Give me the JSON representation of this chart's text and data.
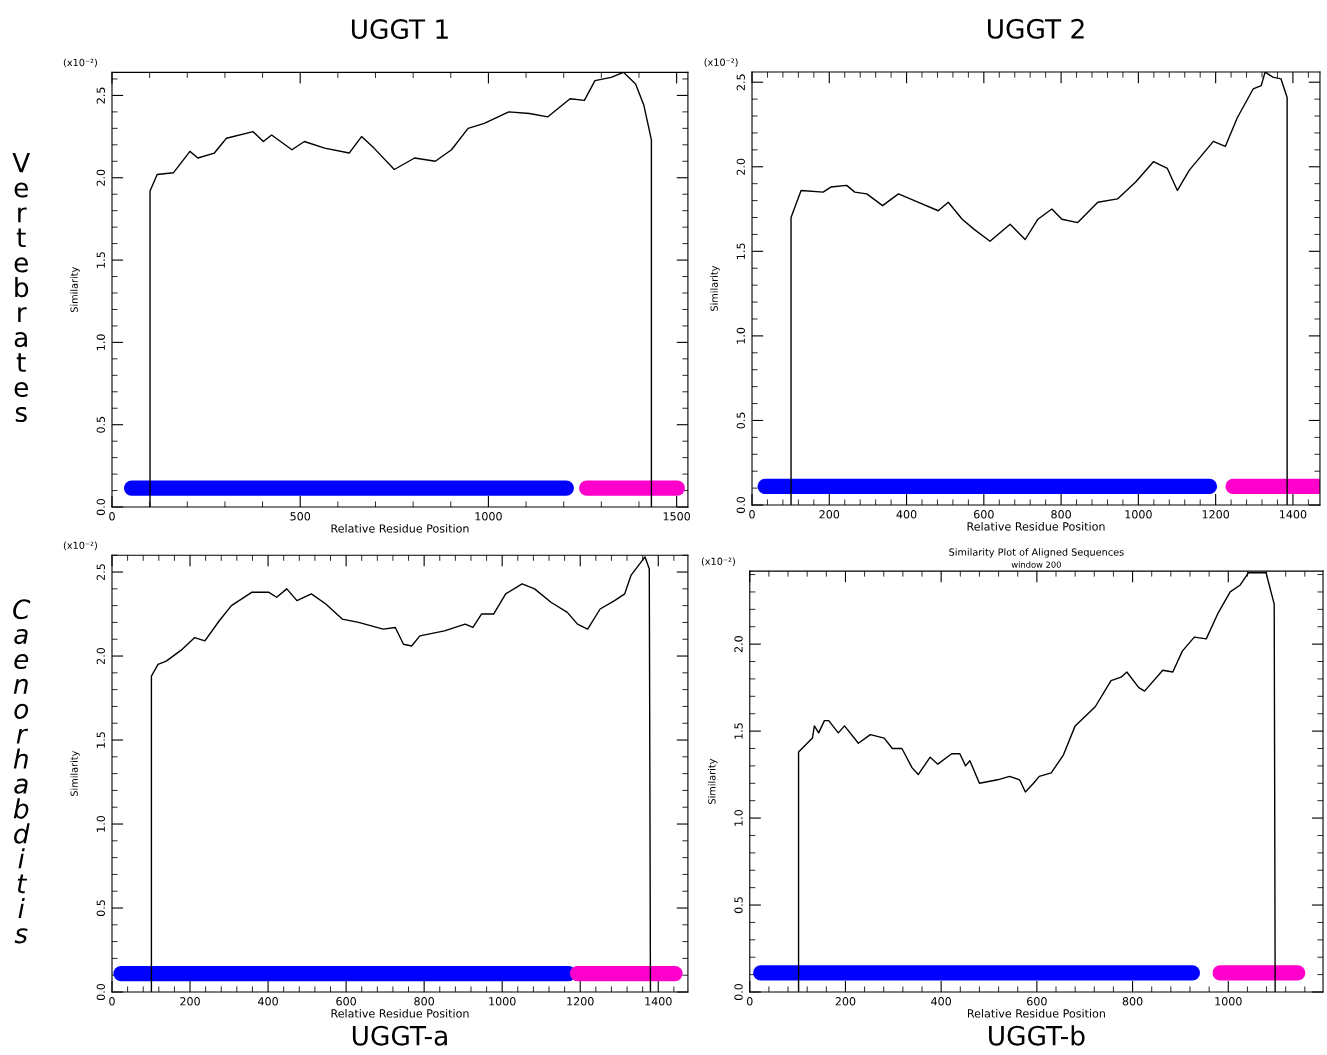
{
  "chart_data": [
    {
      "type": "line",
      "title": "UGGT 1",
      "xlabel": "Relative Residue Position",
      "ylabel": "Similarity",
      "annotations": [
        "(x10⁻²)",
        "Vertebrates"
      ],
      "xlim": [
        0,
        1530
      ],
      "ylim": [
        0,
        2.64
      ],
      "xticks": [
        0,
        500,
        1000,
        1500
      ],
      "yticks": [
        {
          "value": 0,
          "label": "0.0"
        },
        0.5,
        {
          "value": 1,
          "label": "1.0"
        },
        1.5,
        {
          "value": 2,
          "label": "2.0"
        },
        2.5
      ],
      "grid": false,
      "legend": false,
      "marker": "none",
      "line_style": "solid",
      "series": [
        {
          "color": "#000000",
          "x": [
            101,
            101,
            120,
            163,
            207,
            228,
            272,
            304,
            375,
            402,
            424,
            478,
            511,
            565,
            630,
            663,
            696,
            750,
            804,
            859,
            902,
            946,
            989,
            1054,
            1109,
            1158,
            1217,
            1255,
            1283,
            1326,
            1359,
            1391,
            1413,
            1433,
            1433
          ],
          "values": [
            0,
            1.92,
            2.02,
            2.03,
            2.16,
            2.12,
            2.15,
            2.24,
            2.28,
            2.22,
            2.26,
            2.17,
            2.22,
            2.18,
            2.15,
            2.25,
            2.18,
            2.05,
            2.12,
            2.1,
            2.17,
            2.3,
            2.33,
            2.4,
            2.39,
            2.37,
            2.48,
            2.47,
            2.59,
            2.61,
            2.64,
            2.57,
            2.44,
            2.23,
            0
          ]
        },
        {
          "color": "#0000ff",
          "x": [
            52,
            1207
          ],
          "values": [
            0.115,
            0.115
          ]
        },
        {
          "color": "#ff00cc",
          "x": [
            1261,
            1502
          ],
          "values": [
            0.115,
            0.115
          ]
        }
      ]
    },
    {
      "type": "line",
      "title": "UGGT 2",
      "xlabel": "Relative Residue Position",
      "ylabel": "Similarity",
      "annotations": [
        "(x10⁻²)"
      ],
      "xlim": [
        0,
        1470
      ],
      "ylim": [
        0,
        2.56
      ],
      "xticks": [
        0,
        200,
        400,
        600,
        800,
        1000,
        1200,
        1400
      ],
      "yticks": [
        {
          "value": 0,
          "label": "0.0"
        },
        0.5,
        {
          "value": 1,
          "label": "1.0"
        },
        1.5,
        {
          "value": 2,
          "label": "2.0"
        },
        2.5
      ],
      "grid": false,
      "legend": false,
      "marker": "none",
      "line_style": "solid",
      "series": [
        {
          "color": "#000000",
          "x": [
            101,
            101,
            127,
            184,
            204,
            245,
            266,
            297,
            338,
            379,
            431,
            482,
            508,
            544,
            575,
            616,
            668,
            707,
            740,
            776,
            802,
            843,
            895,
            946,
            993,
            1039,
            1075,
            1101,
            1132,
            1194,
            1225,
            1256,
            1297,
            1318,
            1328,
            1348,
            1369,
            1385,
            1385
          ],
          "values": [
            0,
            1.7,
            1.86,
            1.85,
            1.88,
            1.89,
            1.85,
            1.84,
            1.77,
            1.84,
            1.79,
            1.74,
            1.79,
            1.69,
            1.63,
            1.56,
            1.66,
            1.57,
            1.69,
            1.75,
            1.69,
            1.67,
            1.79,
            1.81,
            1.91,
            2.03,
            1.99,
            1.86,
            1.98,
            2.15,
            2.12,
            2.29,
            2.46,
            2.48,
            2.56,
            2.53,
            2.52,
            2.41,
            0
          ]
        },
        {
          "color": "#0000ff",
          "x": [
            34,
            1184
          ],
          "values": [
            0.11,
            0.11
          ]
        },
        {
          "color": "#ff00cc",
          "x": [
            1245,
            1467
          ],
          "values": [
            0.11,
            0.11
          ]
        }
      ]
    },
    {
      "type": "line",
      "title": "UGGT-a",
      "xlabel": "Relative Residue Position",
      "ylabel": "Similarity",
      "annotations": [
        "(x10⁻²)",
        "Caenorhabditis"
      ],
      "xlim": [
        0,
        1476
      ],
      "ylim": [
        0,
        2.6
      ],
      "xticks": [
        0,
        200,
        400,
        600,
        800,
        1000,
        1200,
        1400
      ],
      "yticks": [
        {
          "value": 0,
          "label": "0.0"
        },
        0.5,
        {
          "value": 1,
          "label": "1.0"
        },
        1.5,
        {
          "value": 2,
          "label": "2.0"
        },
        2.5
      ],
      "grid": false,
      "legend": false,
      "marker": "none",
      "line_style": "solid",
      "series": [
        {
          "color": "#000000",
          "x": [
            101,
            101,
            118,
            139,
            180,
            212,
            238,
            275,
            306,
            359,
            401,
            422,
            448,
            474,
            511,
            548,
            590,
            632,
            695,
            726,
            747,
            768,
            789,
            852,
            905,
            925,
            947,
            978,
            1009,
            1051,
            1083,
            1125,
            1167,
            1193,
            1219,
            1251,
            1288,
            1314,
            1330,
            1366,
            1377,
            1380
          ],
          "values": [
            0,
            1.88,
            1.95,
            1.97,
            2.04,
            2.11,
            2.09,
            2.21,
            2.3,
            2.38,
            2.38,
            2.35,
            2.4,
            2.33,
            2.37,
            2.31,
            2.22,
            2.2,
            2.16,
            2.17,
            2.07,
            2.06,
            2.12,
            2.15,
            2.19,
            2.17,
            2.25,
            2.25,
            2.37,
            2.43,
            2.4,
            2.32,
            2.26,
            2.19,
            2.16,
            2.28,
            2.33,
            2.37,
            2.48,
            2.59,
            2.52,
            0
          ]
        },
        {
          "color": "#0000ff",
          "x": [
            23,
            1170
          ],
          "values": [
            0.11,
            0.11
          ]
        },
        {
          "color": "#ff00cc",
          "x": [
            1193,
            1443
          ],
          "values": [
            0.11,
            0.11
          ]
        }
      ]
    },
    {
      "type": "line",
      "title": "UGGT-b",
      "subtitle": "Similarity Plot of Aligned Sequences",
      "xlabel": "Relative Residue Position",
      "ylabel": "Similarity",
      "annotations": [
        "(x10⁻²)",
        "window 200"
      ],
      "xlim": [
        0,
        1198
      ],
      "ylim": [
        0,
        2.42
      ],
      "xticks": [
        0,
        200,
        400,
        600,
        800,
        1000
      ],
      "yticks": [
        {
          "value": 0,
          "label": "0.0"
        },
        0.5,
        {
          "value": 1,
          "label": "1.0"
        },
        1.5,
        {
          "value": 2,
          "label": "2.0"
        }
      ],
      "grid": false,
      "legend": false,
      "marker": "none",
      "line_style": "solid",
      "series": [
        {
          "color": "#000000",
          "x": [
            102,
            102,
            131,
            135,
            144,
            156,
            165,
            185,
            198,
            227,
            252,
            281,
            298,
            318,
            339,
            352,
            377,
            393,
            422,
            439,
            451,
            460,
            480,
            518,
            543,
            564,
            576,
            593,
            605,
            630,
            655,
            680,
            722,
            755,
            776,
            788,
            813,
            825,
            863,
            884,
            904,
            929,
            954,
            979,
            1004,
            1025,
            1042,
            1062,
            1079,
            1096,
            1098
          ],
          "values": [
            0,
            1.38,
            1.46,
            1.53,
            1.49,
            1.56,
            1.56,
            1.49,
            1.53,
            1.43,
            1.48,
            1.46,
            1.4,
            1.4,
            1.29,
            1.25,
            1.35,
            1.31,
            1.37,
            1.37,
            1.3,
            1.33,
            1.2,
            1.22,
            1.24,
            1.22,
            1.15,
            1.2,
            1.24,
            1.26,
            1.36,
            1.53,
            1.64,
            1.79,
            1.81,
            1.84,
            1.75,
            1.73,
            1.85,
            1.84,
            1.96,
            2.04,
            2.03,
            2.18,
            2.3,
            2.34,
            2.41,
            2.41,
            2.41,
            2.23,
            0
          ]
        },
        {
          "color": "#0000ff",
          "x": [
            23,
            925
          ],
          "values": [
            0.11,
            0.11
          ]
        },
        {
          "color": "#ff00cc",
          "x": [
            983,
            1145
          ],
          "values": [
            0.11,
            0.11
          ]
        }
      ]
    }
  ]
}
